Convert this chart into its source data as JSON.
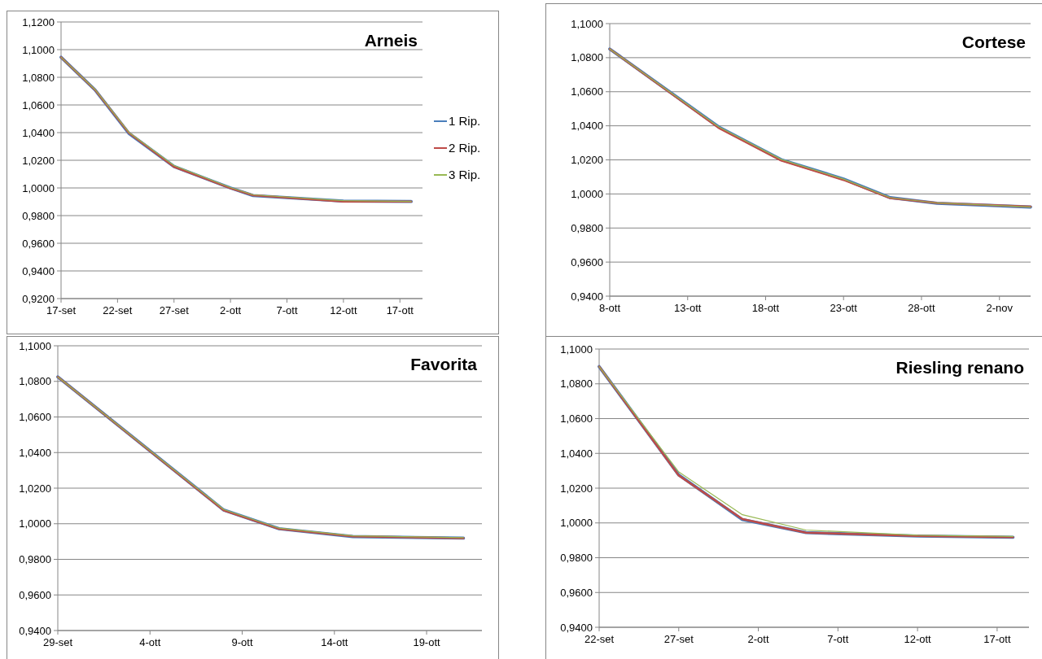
{
  "chart_data": [
    {
      "type": "line",
      "title": "Arneis",
      "x": [
        "--09-17",
        "--09-20",
        "--09-23",
        "--09-27",
        "--10-02",
        "--10-04",
        "--10-12",
        "--10-18"
      ],
      "xlim": [
        "--09-17",
        "--10-19"
      ],
      "xticks": [
        {
          "value": "--09-17",
          "label": "17-set"
        },
        {
          "value": "--09-22",
          "label": "22-set"
        },
        {
          "value": "--09-27",
          "label": "27-set"
        },
        {
          "value": "--10-02",
          "label": "2-ott"
        },
        {
          "value": "--10-07",
          "label": "7-ott"
        },
        {
          "value": "--10-12",
          "label": "12-ott"
        },
        {
          "value": "--10-17",
          "label": "17-ott"
        }
      ],
      "ylim": [
        0.92,
        1.12
      ],
      "yticks": [
        {
          "value": 0.92,
          "label": "0,9200"
        },
        {
          "value": 0.94,
          "label": "0,9400"
        },
        {
          "value": 0.96,
          "label": "0,9600"
        },
        {
          "value": 0.98,
          "label": "0,9800"
        },
        {
          "value": 1.0,
          "label": "1,0000"
        },
        {
          "value": 1.02,
          "label": "1,0200"
        },
        {
          "value": 1.04,
          "label": "1,0400"
        },
        {
          "value": 1.06,
          "label": "1,0600"
        },
        {
          "value": 1.08,
          "label": "1,0800"
        },
        {
          "value": 1.1,
          "label": "1,1000"
        },
        {
          "value": 1.12,
          "label": "1,1200"
        }
      ],
      "grid": "y",
      "legend": "right",
      "series": [
        {
          "name": "1 Rip.",
          "color": "#4a7ebb",
          "values": [
            1.0945,
            1.071,
            1.0395,
            1.0155,
            1.0,
            0.9945,
            0.9905,
            0.9902
          ]
        },
        {
          "name": "2 Rip.",
          "color": "#be4b48",
          "values": [
            1.0945,
            1.071,
            1.0398,
            1.0153,
            0.9998,
            0.9947,
            0.9902,
            0.9902
          ]
        },
        {
          "name": "3 Rip.",
          "color": "#98b954",
          "values": [
            1.0945,
            1.0712,
            1.0402,
            1.0162,
            1.0003,
            0.995,
            0.9908,
            0.9902
          ]
        }
      ]
    },
    {
      "type": "line",
      "title": "Cortese",
      "x": [
        "--10-08",
        "--10-15",
        "--10-19",
        "--10-23",
        "--10-26",
        "--10-29",
        "--11-04"
      ],
      "xlim": [
        "--10-08",
        "--11-04"
      ],
      "xticks": [
        {
          "value": "--10-08",
          "label": "8-ott"
        },
        {
          "value": "--10-13",
          "label": "13-ott"
        },
        {
          "value": "--10-18",
          "label": "18-ott"
        },
        {
          "value": "--10-23",
          "label": "23-ott"
        },
        {
          "value": "--10-28",
          "label": "28-ott"
        },
        {
          "value": "--11-02",
          "label": "2-nov"
        }
      ],
      "ylim": [
        0.94,
        1.1
      ],
      "yticks": [
        {
          "value": 0.94,
          "label": "0,9400"
        },
        {
          "value": 0.96,
          "label": "0,9600"
        },
        {
          "value": 0.98,
          "label": "0,9800"
        },
        {
          "value": 1.0,
          "label": "1,0000"
        },
        {
          "value": 1.02,
          "label": "1,0200"
        },
        {
          "value": 1.04,
          "label": "1,0400"
        },
        {
          "value": 1.06,
          "label": "1,0600"
        },
        {
          "value": 1.08,
          "label": "1,0800"
        },
        {
          "value": 1.1,
          "label": "1,1000"
        }
      ],
      "grid": "y",
      "series": [
        {
          "color": "#4a7ebb",
          "values": [
            1.0851,
            1.0393,
            1.0201,
            1.0088,
            0.9978,
            0.9945,
            0.9923
          ]
        },
        {
          "color": "#be4b48",
          "values": [
            1.0851,
            1.0387,
            1.0196,
            1.0082,
            0.9975,
            0.9947,
            0.9925
          ]
        },
        {
          "color": "#98b954",
          "values": [
            1.0851,
            1.0393,
            1.0203,
            1.0087,
            0.9978,
            0.9947,
            0.9924
          ]
        }
      ]
    },
    {
      "type": "line",
      "title": "Favorita",
      "x": [
        "--09-29",
        "--10-08",
        "--10-11",
        "--10-15",
        "--10-21"
      ],
      "xlim": [
        "--09-29",
        "--10-22"
      ],
      "xticks": [
        {
          "value": "--09-29",
          "label": "29-set"
        },
        {
          "value": "--10-04",
          "label": "4-ott"
        },
        {
          "value": "--10-09",
          "label": "9-ott"
        },
        {
          "value": "--10-14",
          "label": "14-ott"
        },
        {
          "value": "--10-19",
          "label": "19-ott"
        }
      ],
      "ylim": [
        0.94,
        1.1
      ],
      "yticks": [
        {
          "value": 0.94,
          "label": "0,9400"
        },
        {
          "value": 0.96,
          "label": "0,9600"
        },
        {
          "value": 0.98,
          "label": "0,9800"
        },
        {
          "value": 1.0,
          "label": "1,0000"
        },
        {
          "value": 1.02,
          "label": "1,0200"
        },
        {
          "value": 1.04,
          "label": "1,0400"
        },
        {
          "value": 1.06,
          "label": "1,0600"
        },
        {
          "value": 1.08,
          "label": "1,0800"
        },
        {
          "value": 1.1,
          "label": "1,1000"
        }
      ],
      "grid": "y",
      "series": [
        {
          "color": "#4a7ebb",
          "values": [
            1.0825,
            1.0077,
            0.9972,
            0.9928,
            0.9919
          ]
        },
        {
          "color": "#be4b48",
          "values": [
            1.0825,
            1.0075,
            0.9971,
            0.9929,
            0.9919
          ]
        },
        {
          "color": "#98b954",
          "values": [
            1.0825,
            1.008,
            0.9975,
            0.9932,
            0.9922
          ]
        }
      ]
    },
    {
      "type": "line",
      "title": "Riesling renano",
      "x": [
        "--09-22",
        "--09-27",
        "--10-01",
        "--10-05",
        "--10-12",
        "--10-18"
      ],
      "xlim": [
        "--09-22",
        "--10-19"
      ],
      "xticks": [
        {
          "value": "--09-22",
          "label": "22-set"
        },
        {
          "value": "--09-27",
          "label": "27-set"
        },
        {
          "value": "--10-02",
          "label": "2-ott"
        },
        {
          "value": "--10-07",
          "label": "7-ott"
        },
        {
          "value": "--10-12",
          "label": "12-ott"
        },
        {
          "value": "--10-17",
          "label": "17-ott"
        }
      ],
      "ylim": [
        0.94,
        1.1
      ],
      "yticks": [
        {
          "value": 0.94,
          "label": "0,9400"
        },
        {
          "value": 0.96,
          "label": "0,9600"
        },
        {
          "value": 0.98,
          "label": "0,9800"
        },
        {
          "value": 1.0,
          "label": "1,0000"
        },
        {
          "value": 1.02,
          "label": "1,0200"
        },
        {
          "value": 1.04,
          "label": "1,0400"
        },
        {
          "value": 1.06,
          "label": "1,0600"
        },
        {
          "value": 1.08,
          "label": "1,0800"
        },
        {
          "value": 1.1,
          "label": "1,1000"
        }
      ],
      "grid": "y",
      "series": [
        {
          "color": "#4a7ebb",
          "values": [
            1.0899,
            1.0276,
            1.0019,
            0.9944,
            0.9925,
            0.9918
          ]
        },
        {
          "color": "#be4b48",
          "values": [
            1.0899,
            1.0273,
            1.0022,
            0.9944,
            0.9925,
            0.9918
          ]
        },
        {
          "color": "#98b954",
          "values": [
            1.0899,
            1.0293,
            1.0047,
            0.9959,
            0.9929,
            0.9922
          ]
        }
      ]
    }
  ]
}
